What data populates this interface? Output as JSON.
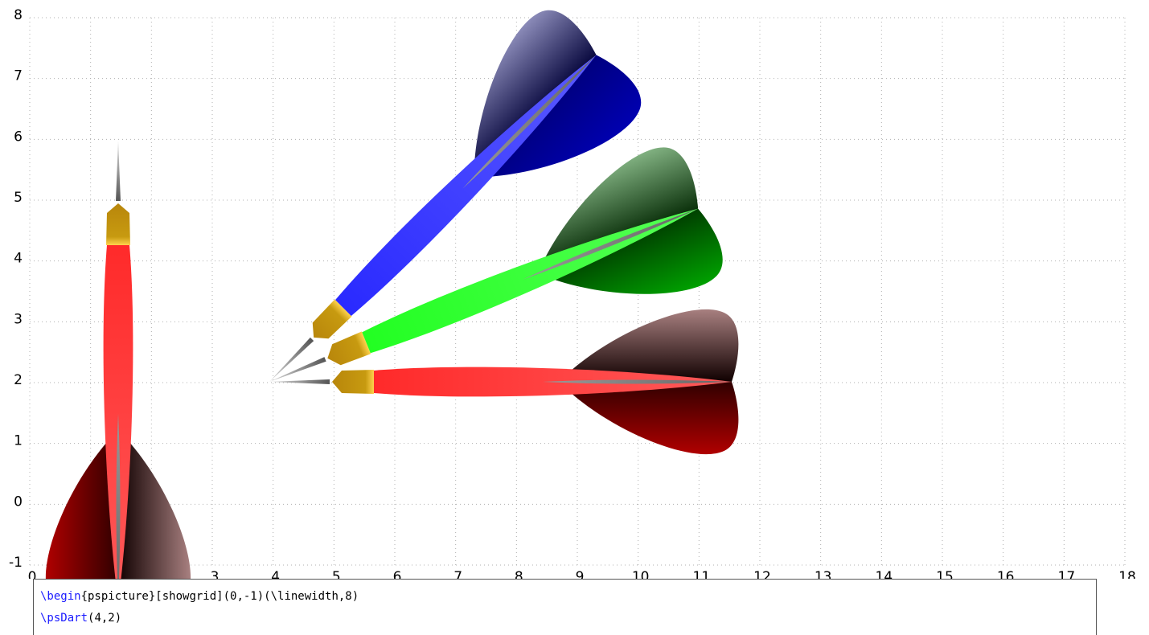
{
  "grid": {
    "xlim": [
      0,
      18
    ],
    "ylim": [
      -1,
      8
    ],
    "xticks": [
      0,
      1,
      2,
      3,
      4,
      5,
      6,
      7,
      8,
      9,
      10,
      11,
      12,
      13,
      14,
      15,
      16,
      17,
      18
    ],
    "yticks": [
      -1,
      0,
      1,
      2,
      3,
      4,
      5,
      6,
      7,
      8
    ]
  },
  "code": {
    "lines": [
      {
        "keyword": "\\begin",
        "rest": "{pspicture}[showgrid](0,-1)(\\linewidth,8)"
      },
      {
        "keyword": "\\psDart",
        "rest": "(4,2)"
      }
    ]
  }
}
